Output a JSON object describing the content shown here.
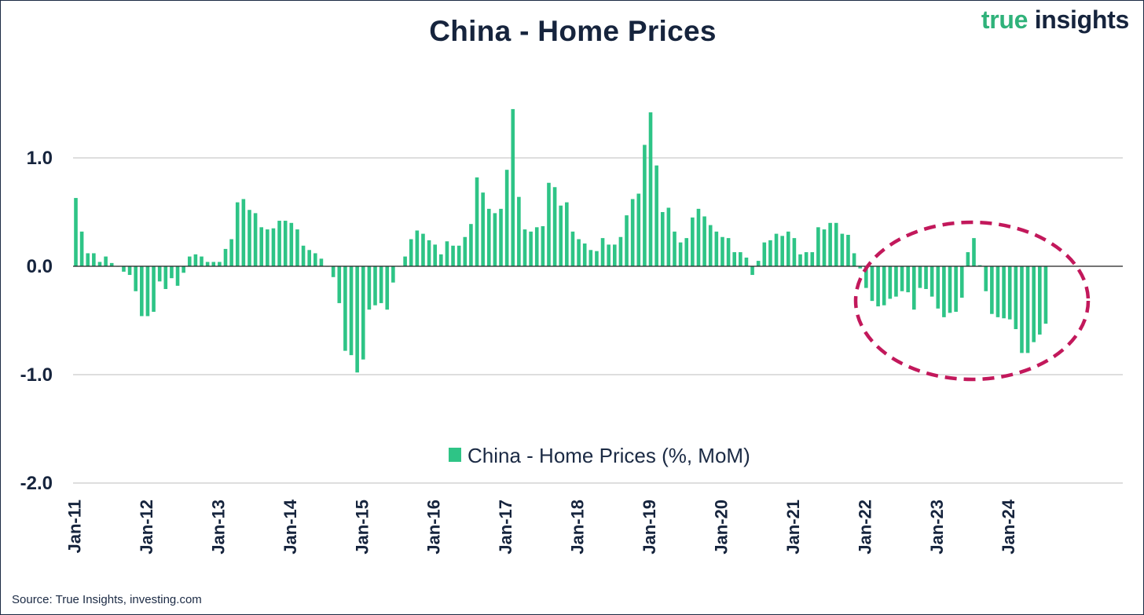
{
  "header": {
    "title": "China - Home Prices",
    "brand_part1": "true",
    "brand_part2": "insights"
  },
  "footer": {
    "source": "Source: True Insights, investing.com"
  },
  "colors": {
    "bar": "#2ec486",
    "highlight": "#c2185b",
    "text": "#16243d",
    "grid": "#bdbdbd",
    "zero_line": "#222222"
  },
  "chart_data": {
    "type": "bar",
    "title": "China - Home Prices",
    "ylim": [
      -2.0,
      1.5
    ],
    "yticks": [
      1.0,
      0.0,
      -1.0,
      -2.0
    ],
    "ytick_labels": [
      "1.0",
      "0.0",
      "-1.0",
      "-2.0"
    ],
    "xtick_labels": [
      "Jan-11",
      "Jan-12",
      "Jan-13",
      "Jan-14",
      "Jan-15",
      "Jan-16",
      "Jan-17",
      "Jan-18",
      "Jan-19",
      "Jan-20",
      "Jan-21",
      "Jan-22",
      "Jan-23",
      "Jan-24"
    ],
    "grid": "horizontal",
    "legend_position": "bottom-center",
    "series": [
      {
        "name": "China - Home Prices (%, MoM)",
        "start": "2011-01",
        "frequency": "monthly",
        "values": [
          0.63,
          0.32,
          0.12,
          0.12,
          0.04,
          0.09,
          0.03,
          0.0,
          -0.05,
          -0.08,
          -0.23,
          -0.46,
          -0.46,
          -0.42,
          -0.14,
          -0.21,
          -0.11,
          -0.18,
          -0.06,
          0.09,
          0.11,
          0.09,
          0.04,
          0.04,
          0.04,
          0.16,
          0.25,
          0.59,
          0.62,
          0.52,
          0.49,
          0.36,
          0.34,
          0.35,
          0.42,
          0.42,
          0.4,
          0.34,
          0.19,
          0.15,
          0.12,
          0.07,
          0.0,
          -0.1,
          -0.34,
          -0.78,
          -0.82,
          -0.98,
          -0.86,
          -0.4,
          -0.36,
          -0.34,
          -0.4,
          -0.15,
          0.0,
          0.09,
          0.25,
          0.33,
          0.3,
          0.24,
          0.2,
          0.11,
          0.23,
          0.19,
          0.19,
          0.27,
          0.39,
          0.82,
          0.68,
          0.53,
          0.49,
          0.53,
          0.89,
          1.45,
          0.64,
          0.34,
          0.32,
          0.36,
          0.37,
          0.77,
          0.73,
          0.56,
          0.59,
          0.32,
          0.25,
          0.21,
          0.15,
          0.14,
          0.26,
          0.2,
          0.2,
          0.27,
          0.47,
          0.62,
          0.67,
          1.12,
          1.42,
          0.93,
          0.5,
          0.54,
          0.32,
          0.22,
          0.26,
          0.45,
          0.53,
          0.46,
          0.38,
          0.32,
          0.27,
          0.26,
          0.13,
          0.13,
          0.08,
          -0.08,
          0.05,
          0.22,
          0.24,
          0.3,
          0.28,
          0.32,
          0.26,
          0.11,
          0.13,
          0.13,
          0.36,
          0.34,
          0.4,
          0.4,
          0.3,
          0.29,
          0.12,
          -0.02,
          -0.2,
          -0.32,
          -0.37,
          -0.36,
          -0.3,
          -0.28,
          -0.23,
          -0.24,
          -0.4,
          -0.2,
          -0.21,
          -0.28,
          -0.39,
          -0.47,
          -0.43,
          -0.42,
          -0.29,
          0.13,
          0.26,
          0.01,
          -0.23,
          -0.44,
          -0.47,
          -0.48,
          -0.49,
          -0.58,
          -0.8,
          -0.8,
          -0.7,
          -0.63,
          -0.53
        ]
      }
    ]
  }
}
